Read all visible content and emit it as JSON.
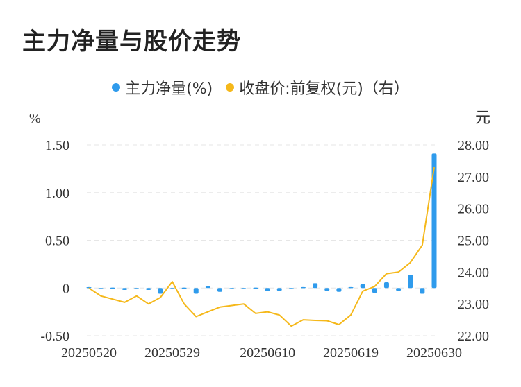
{
  "title": "主力净量与股价走势",
  "colors": {
    "bar": "#2f9bec",
    "line": "#f5b81a",
    "grid": "#e6e6e6",
    "text": "#333333"
  },
  "chart_data": {
    "type": "bar",
    "legend": {
      "position": "top-center",
      "grid": true
    },
    "series": [
      {
        "name": "主力净量(%)",
        "type": "bar",
        "axis": "left",
        "color": "#2f9bec",
        "values": [
          0.01,
          -0.01,
          0.005,
          -0.02,
          -0.01,
          -0.02,
          -0.06,
          -0.01,
          0.005,
          -0.06,
          0.02,
          -0.04,
          -0.005,
          -0.01,
          0.005,
          -0.03,
          -0.03,
          0.0,
          0.01,
          0.05,
          -0.03,
          -0.04,
          0.01,
          0.04,
          -0.05,
          0.06,
          -0.03,
          0.14,
          -0.06,
          1.41
        ]
      },
      {
        "name": "收盘价:前复权(元)（右）",
        "type": "line",
        "axis": "right",
        "color": "#f5b81a",
        "values": [
          23.5,
          23.25,
          23.15,
          23.05,
          23.25,
          23.0,
          23.2,
          23.7,
          23.0,
          22.6,
          22.75,
          22.9,
          22.95,
          23.0,
          22.7,
          22.75,
          22.65,
          22.3,
          22.5,
          22.48,
          22.47,
          22.35,
          22.65,
          23.4,
          23.55,
          23.95,
          24.0,
          24.3,
          24.85,
          27.3
        ]
      }
    ],
    "x_tick_labels": [
      "20250520",
      "20250529",
      "20250610",
      "20250619",
      "20250630"
    ],
    "y_left": {
      "unit": "%",
      "min": -0.5,
      "max": 1.5,
      "ticks": [
        "-0.50",
        "0",
        "0.50",
        "1.00",
        "1.50"
      ]
    },
    "y_right": {
      "unit": "元",
      "min": 22.0,
      "max": 28.0,
      "ticks": [
        "22.00",
        "23.00",
        "24.00",
        "25.00",
        "26.00",
        "27.00",
        "28.00"
      ]
    }
  }
}
